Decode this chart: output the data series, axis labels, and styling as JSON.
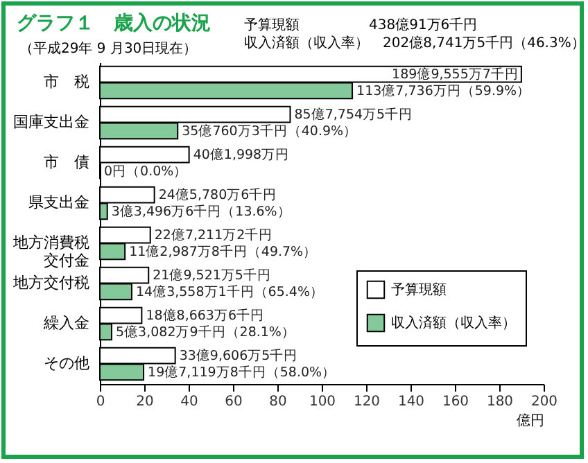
{
  "chart_data": {
    "type": "bar",
    "orientation": "horizontal",
    "title": "グラフ１　歳入の状況",
    "subtitle": "（平成29年 9 月30日現在）",
    "annotations": [
      "予算現額　　　　　438億91万6千円",
      "収入済額（収入率）　202億8,741万5千円（46.3%）",
      {
        "text": "189億9,555万7千円",
        "x": 189.96,
        "y": "市　税"
      },
      {
        "text": "85億7,754万5千円",
        "x": 85.78,
        "y": "国庫支出金"
      },
      {
        "text": "40億1,998万円",
        "x": 40.2,
        "y": "市　債"
      },
      {
        "text": "24億5,780万6千円",
        "x": 24.58,
        "y": "県支出金"
      },
      {
        "text": "22億7,211万2千円",
        "x": 22.72,
        "y": "地方消費税交付金"
      },
      {
        "text": "21億9,521万5千円",
        "x": 21.95,
        "y": "地方交付税"
      },
      {
        "text": "18億8,663万6千円",
        "x": 18.87,
        "y": "繰入金"
      },
      {
        "text": "33億9,606万5千円",
        "x": 33.96,
        "y": "その他"
      },
      {
        "text": "113億7,736万円（59.9%）",
        "x": 113.77,
        "y": "市　税"
      },
      {
        "text": "35億760万3千円（40.9%）",
        "x": 35.08,
        "y": "国庫支出金"
      },
      {
        "text": "0円（0.0%）",
        "x": 0,
        "y": "市　債"
      },
      {
        "text": "3億3,496万6千円（13.6%）",
        "x": 3.35,
        "y": "県支出金"
      },
      {
        "text": "11億2,987万8千円（49.7%）",
        "x": 11.3,
        "y": "地方消費税交付金"
      },
      {
        "text": "14億3,558万1千円（65.4%）",
        "x": 14.36,
        "y": "地方交付税"
      },
      {
        "text": "5億3,082万9千円（28.1%）",
        "x": 5.31,
        "y": "繰入金"
      },
      {
        "text": "19億7,119万8千円（58.0%）",
        "x": 19.71,
        "y": "その他"
      }
    ],
    "xlabel": "億円",
    "categories": [
      "市　税",
      "国庫支出金",
      "市　債",
      "県支出金",
      "地方消費税交付金",
      "地方交付税",
      "繰入金",
      "その他"
    ],
    "series": [
      {
        "name": "予算現額",
        "color": "#ffffff",
        "values": [
          189.96,
          85.78,
          40.2,
          24.58,
          22.72,
          21.95,
          18.87,
          33.96
        ]
      },
      {
        "name": "収入済額（収入率）",
        "color": "#84c99a",
        "values": [
          113.77,
          35.08,
          0,
          3.35,
          11.3,
          14.36,
          5.31,
          19.71
        ]
      }
    ],
    "xlim": [
      0,
      200
    ],
    "xticks": [
      0,
      20,
      40,
      60,
      80,
      100,
      120,
      140,
      160,
      180,
      200
    ],
    "grid": false,
    "legend": "bottom right"
  }
}
